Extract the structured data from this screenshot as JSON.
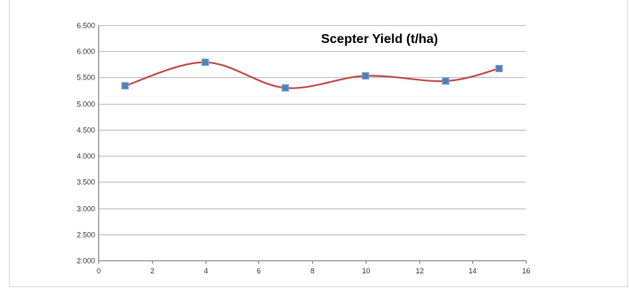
{
  "chart_data": {
    "type": "line",
    "title": "Scepter Yield (t/ha)",
    "xlabel": "",
    "ylabel": "",
    "xlim": [
      0,
      16
    ],
    "ylim": [
      2.0,
      6.5
    ],
    "x_ticks": [
      0,
      2,
      4,
      6,
      8,
      10,
      12,
      14,
      16
    ],
    "x_tick_labels": [
      "0",
      "2",
      "4",
      "6",
      "8",
      "10",
      "12",
      "14",
      "16"
    ],
    "y_ticks": [
      2.0,
      2.5,
      3.0,
      3.5,
      4.0,
      4.5,
      5.0,
      5.5,
      6.0,
      6.5
    ],
    "y_tick_labels": [
      "2.000",
      "2.500",
      "3.000",
      "3.500",
      "4.000",
      "4.500",
      "5.000",
      "5.500",
      "6.000",
      "6.500"
    ],
    "grid": true,
    "legend": "none",
    "smooth": true,
    "series": [
      {
        "x": [
          1,
          4,
          7,
          10,
          13,
          15
        ],
        "y": [
          5.34,
          5.79,
          5.3,
          5.53,
          5.43,
          5.67
        ]
      }
    ],
    "colors": {
      "line": "#c0504d",
      "marker_fill": "#4f81bd",
      "marker_stroke": "#7f9fc8",
      "gridline": "#a6a6a6",
      "axis": "#7f7f7f"
    }
  }
}
